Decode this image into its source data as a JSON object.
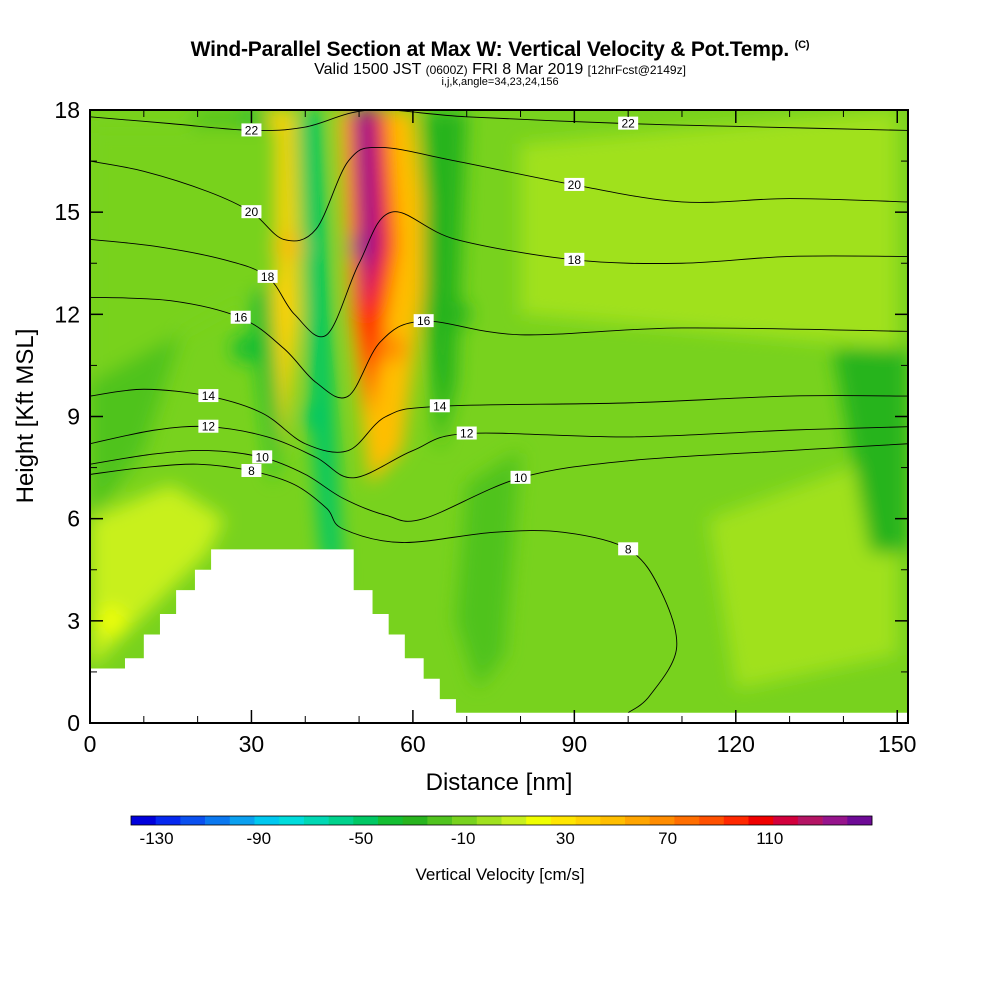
{
  "header": {
    "title": "Wind-Parallel Section at Max W: Vertical Velocity & Pot.Temp.",
    "title_mark": "(C)",
    "subtitle_a": "Valid 1500 JST",
    "subtitle_b": "(0600Z)",
    "subtitle_c": "FRI 8 Mar 2019",
    "subtitle_d": "[12hrFcst@2149z]",
    "index_line": "i,j,k,angle=34,23,24,156"
  },
  "chart_data": {
    "type": "heatmap",
    "xlabel": "Distance [nm]",
    "ylabel": "Height [Kft MSL]",
    "xlim": [
      0,
      152
    ],
    "ylim": [
      0,
      18
    ],
    "xticks": [
      "0",
      "30",
      "60",
      "90",
      "120",
      "150"
    ],
    "yticks": [
      "0",
      "3",
      "6",
      "9",
      "12",
      "15",
      "18"
    ],
    "colorbar": {
      "label": "Vertical Velocity [cm/s]",
      "min": -140,
      "max": 150,
      "step": 10,
      "tick_labels": [
        "-130",
        "-90",
        "-50",
        "-10",
        "30",
        "70",
        "110"
      ],
      "colors": [
        "#0000dc",
        "#0528f0",
        "#0a50f0",
        "#0a78f0",
        "#0aa0f0",
        "#00c8f0",
        "#00dcdc",
        "#00d8b4",
        "#00d28c",
        "#00c864",
        "#14be32",
        "#28b41e",
        "#50c31e",
        "#78d21e",
        "#a0e11e",
        "#c8f01e",
        "#f0ff00",
        "#ffe600",
        "#ffd200",
        "#ffbe00",
        "#ffa500",
        "#ff8c00",
        "#ff6e00",
        "#ff5000",
        "#ff2800",
        "#f00000",
        "#d2003c",
        "#b41464",
        "#96148c",
        "#6e0a96"
      ]
    },
    "terrain_top_kft": [
      [
        0,
        1.6
      ],
      [
        6.5,
        1.6
      ],
      [
        6.5,
        1.9
      ],
      [
        10,
        1.9
      ],
      [
        10,
        2.6
      ],
      [
        13,
        2.6
      ],
      [
        13,
        3.2
      ],
      [
        16,
        3.2
      ],
      [
        16,
        3.9
      ],
      [
        19.5,
        3.9
      ],
      [
        19.5,
        4.5
      ],
      [
        22.5,
        4.5
      ],
      [
        22.5,
        5.1
      ],
      [
        49,
        5.1
      ],
      [
        49,
        3.9
      ],
      [
        52.5,
        3.9
      ],
      [
        52.5,
        3.2
      ],
      [
        55.5,
        3.2
      ],
      [
        55.5,
        2.6
      ],
      [
        58.5,
        2.6
      ],
      [
        58.5,
        1.9
      ],
      [
        62,
        1.9
      ],
      [
        62,
        1.3
      ],
      [
        65,
        1.3
      ],
      [
        65,
        0.7
      ],
      [
        68,
        0.7
      ],
      [
        68,
        0.3
      ],
      [
        152,
        0.3
      ]
    ],
    "w_features": [
      {
        "x": 51,
        "y": 14,
        "w_cm_s": 140
      },
      {
        "x": 56,
        "y": 11,
        "w_cm_s": 70
      },
      {
        "x": 37,
        "y": 14,
        "w_cm_s": 50
      },
      {
        "x": 42,
        "y": 9,
        "w_cm_s": -50
      },
      {
        "x": 29,
        "y": 11,
        "w_cm_s": -40
      },
      {
        "x": 4,
        "y": 3,
        "w_cm_s": 20
      },
      {
        "x": 120,
        "y": 16,
        "w_cm_s": 5
      },
      {
        "x": 68,
        "y": 12,
        "w_cm_s": -25
      }
    ],
    "theta_contours": [
      {
        "label": "8",
        "points": [
          [
            0,
            7.3
          ],
          [
            10,
            7.5
          ],
          [
            20,
            7.6
          ],
          [
            30,
            7.4
          ],
          [
            38,
            7
          ],
          [
            44,
            6.3
          ],
          [
            47,
            5.7
          ],
          [
            58,
            5.3
          ],
          [
            75,
            5.6
          ],
          [
            88,
            5.6
          ],
          [
            100,
            5.1
          ],
          [
            106,
            3.9
          ],
          [
            109,
            2.2
          ],
          [
            104,
            0.8
          ],
          [
            100,
            0.3
          ]
        ]
      },
      {
        "label": "10",
        "points": [
          [
            0,
            7.6
          ],
          [
            12,
            7.9
          ],
          [
            22,
            8
          ],
          [
            32,
            7.8
          ],
          [
            40,
            7.3
          ],
          [
            47,
            6.6
          ],
          [
            55,
            6.1
          ],
          [
            62,
            6
          ],
          [
            80,
            7.2
          ],
          [
            100,
            7.7
          ],
          [
            130,
            8
          ],
          [
            152,
            8.2
          ]
        ]
      },
      {
        "label": "12",
        "points": [
          [
            0,
            8.2
          ],
          [
            12,
            8.6
          ],
          [
            22,
            8.7
          ],
          [
            33,
            8.4
          ],
          [
            42,
            7.8
          ],
          [
            49,
            7.2
          ],
          [
            60,
            8
          ],
          [
            70,
            8.5
          ],
          [
            100,
            8.4
          ],
          [
            130,
            8.6
          ],
          [
            152,
            8.7
          ]
        ]
      },
      {
        "label": "14",
        "points": [
          [
            0,
            9.6
          ],
          [
            10,
            9.8
          ],
          [
            22,
            9.6
          ],
          [
            32,
            9.1
          ],
          [
            40,
            8.2
          ],
          [
            48,
            8
          ],
          [
            55,
            9
          ],
          [
            65,
            9.3
          ],
          [
            100,
            9.4
          ],
          [
            130,
            9.6
          ],
          [
            152,
            9.6
          ]
        ]
      },
      {
        "label": "16",
        "points": [
          [
            0,
            12.5
          ],
          [
            15,
            12.4
          ],
          [
            28,
            11.9
          ],
          [
            36,
            11
          ],
          [
            42,
            10
          ],
          [
            48,
            9.6
          ],
          [
            54,
            11.2
          ],
          [
            62,
            11.8
          ],
          [
            80,
            11.4
          ],
          [
            110,
            11.6
          ],
          [
            152,
            11.5
          ]
        ]
      },
      {
        "label": "18",
        "points": [
          [
            0,
            14.2
          ],
          [
            12,
            14
          ],
          [
            25,
            13.6
          ],
          [
            33,
            13.1
          ],
          [
            38,
            12
          ],
          [
            44,
            11.4
          ],
          [
            50,
            13.5
          ],
          [
            56,
            15
          ],
          [
            68,
            14.2
          ],
          [
            90,
            13.6
          ],
          [
            110,
            13.5
          ],
          [
            130,
            13.7
          ],
          [
            152,
            13.7
          ]
        ]
      },
      {
        "label": "20",
        "points": [
          [
            0,
            16.5
          ],
          [
            10,
            16.2
          ],
          [
            22,
            15.6
          ],
          [
            30,
            15
          ],
          [
            36,
            14.2
          ],
          [
            42,
            14.5
          ],
          [
            48,
            16.5
          ],
          [
            54,
            16.9
          ],
          [
            68,
            16.5
          ],
          [
            90,
            15.8
          ],
          [
            110,
            15.3
          ],
          [
            130,
            15.4
          ],
          [
            152,
            15.3
          ]
        ]
      },
      {
        "label": "22",
        "points": [
          [
            0,
            17.8
          ],
          [
            15,
            17.6
          ],
          [
            30,
            17.4
          ],
          [
            40,
            17.5
          ],
          [
            52,
            18
          ],
          [
            70,
            17.8
          ],
          [
            100,
            17.6
          ],
          [
            125,
            17.5
          ],
          [
            152,
            17.4
          ]
        ]
      }
    ]
  }
}
